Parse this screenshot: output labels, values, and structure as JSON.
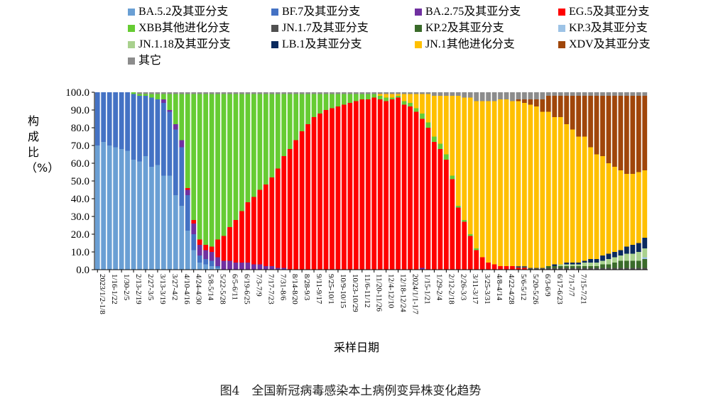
{
  "caption": "图4　全国新冠病毒感染本土病例变异株变化趋势",
  "chart_data": {
    "type": "bar",
    "stacked": true,
    "ylabel": "构成比（%）",
    "xlabel": "采样日期",
    "ylim": [
      0,
      100
    ],
    "yticks": [
      "0.0",
      "10.0",
      "20.0",
      "30.0",
      "40.0",
      "50.0",
      "60.0",
      "70.0",
      "80.0",
      "90.0",
      "100.0"
    ],
    "legend_position": "top",
    "legend": [
      {
        "name": "BA.5.2及其亚分支",
        "color": "#6a9fd4"
      },
      {
        "name": "BF.7及其亚分支",
        "color": "#4472c4"
      },
      {
        "name": "BA.2.75及其亚分支",
        "color": "#7030a0"
      },
      {
        "name": "EG.5及其亚分支",
        "color": "#ff0000"
      },
      {
        "name": "XBB其他进化分支",
        "color": "#66cc33"
      },
      {
        "name": "JN.1.7及其亚分支",
        "color": "#505050"
      },
      {
        "name": "KP.2及其亚分支",
        "color": "#3a6b2a"
      },
      {
        "name": "KP.3及其亚分支",
        "color": "#9dc3e6"
      },
      {
        "name": "JN.1.18及其亚分支",
        "color": "#a9d18e"
      },
      {
        "name": "LB.1及其亚分支",
        "color": "#0a2a5e"
      },
      {
        "name": "JN.1其他进化分支",
        "color": "#ffc000"
      },
      {
        "name": "XDV及其亚分支",
        "color": "#a0460a"
      },
      {
        "name": "其它",
        "color": "#8c8c8c"
      }
    ],
    "x_tick_labels": [
      "2023/1/2-1/8",
      "1/16-1/22",
      "1/30-2/5",
      "2/13-2/19",
      "2/27-3/5",
      "3/13-3/19",
      "3/27-4/2",
      "4/10-4/16",
      "4/24-4/30",
      "5/8-5/14",
      "5/22-5/28",
      "6/5-6/11",
      "6/19-6/25",
      "7/3-7/9",
      "7/17-7/23",
      "7/31-8/6",
      "8/14-8/20",
      "8/28-9/3",
      "9/11-9/17",
      "9/25-10/1",
      "10/9-10/15",
      "10/23-10/29",
      "11/6-11/12",
      "11/20-11/26",
      "12/4-12/10",
      "12/18-12/24",
      "2024/1/1-1/7",
      "1/15-1/21",
      "1/29-2/4",
      "2/12-2/18",
      "2/26-3/3",
      "3/11-3/17",
      "3/25-3/31",
      "4/8-4/14",
      "4/22-4/28",
      "5/6-5/12",
      "5/20-5/26",
      "6/3-6/9",
      "6/17-6/23",
      "7/1-7/7",
      "7/15-7/21"
    ],
    "series_order": [
      "BA.5.2及其亚分支",
      "BF.7及其亚分支",
      "BA.2.75及其亚分支",
      "EG.5及其亚分支",
      "XBB其他进化分支",
      "JN.1.7及其亚分支",
      "KP.2及其亚分支",
      "KP.3及其亚分支",
      "JN.1.18及其亚分支",
      "LB.1及其亚分支",
      "JN.1其他进化分支",
      "XDV及其亚分支",
      "其它"
    ],
    "weeks": [
      {
        "BA.5.2及其亚分支": 70,
        "BF.7及其亚分支": 30
      },
      {
        "BA.5.2及其亚分支": 72,
        "BF.7及其亚分支": 28
      },
      {
        "BA.5.2及其亚分支": 70,
        "BF.7及其亚分支": 30
      },
      {
        "BA.5.2及其亚分支": 69,
        "BF.7及其亚分支": 31
      },
      {
        "BA.5.2及其亚分支": 68,
        "BF.7及其亚分支": 32
      },
      {
        "BA.5.2及其亚分支": 67,
        "BF.7及其亚分支": 33
      },
      {
        "BA.5.2及其亚分支": 62,
        "BF.7及其亚分支": 37,
        "XBB其他进化分支": 1
      },
      {
        "BA.5.2及其亚分支": 61,
        "BF.7及其亚分支": 37,
        "XBB其他进化分支": 1,
        "其它": 1
      },
      {
        "BA.5.2及其亚分支": 64,
        "BF.7及其亚分支": 34,
        "XBB其他进化分支": 1,
        "其它": 1
      },
      {
        "BA.5.2及其亚分支": 58,
        "BF.7及其亚分支": 39,
        "XBB其他进化分支": 2,
        "其它": 1
      },
      {
        "BA.5.2及其亚分支": 59,
        "BF.7及其亚分支": 37,
        "XBB其他进化分支": 3,
        "其它": 1
      },
      {
        "BA.5.2及其亚分支": 53,
        "BF.7及其亚分支": 41,
        "BA.2.75及其亚分支": 2,
        "XBB其他进化分支": 3,
        "其它": 1
      },
      {
        "BA.5.2及其亚分支": 53,
        "BF.7及其亚分支": 36,
        "BA.2.75及其亚分支": 1,
        "XBB其他进化分支": 9,
        "其它": 1
      },
      {
        "BA.5.2及其亚分支": 42,
        "BF.7及其亚分支": 37,
        "BA.2.75及其亚分支": 3,
        "XBB其他进化分支": 17,
        "其它": 1
      },
      {
        "BA.5.2及其亚分支": 36,
        "BF.7及其亚分支": 33,
        "BA.2.75及其亚分支": 4,
        "XBB其他进化分支": 26,
        "其它": 1
      },
      {
        "BA.5.2及其亚分支": 22,
        "BF.7及其亚分支": 20,
        "BA.2.75及其亚分支": 3,
        "EG.5及其亚分支": 1,
        "XBB其他进化分支": 53,
        "其它": 1
      },
      {
        "BA.5.2及其亚分支": 11,
        "BF.7及其亚分支": 9,
        "BA.2.75及其亚分支": 6,
        "EG.5及其亚分支": 2,
        "XBB其他进化分支": 71,
        "其它": 1
      },
      {
        "BA.5.2及其亚分支": 4,
        "BF.7及其亚分支": 4,
        "BA.2.75及其亚分支": 6,
        "EG.5及其亚分支": 3,
        "XBB其他进化分支": 82,
        "其它": 1
      },
      {
        "BA.5.2及其亚分支": 3,
        "BF.7及其亚分支": 3,
        "BA.2.75及其亚分支": 5,
        "EG.5及其亚分支": 3,
        "XBB其他进化分支": 85,
        "其它": 1
      },
      {
        "BA.5.2及其亚分支": 2,
        "BF.7及其亚分支": 3,
        "BA.2.75及其亚分支": 5,
        "EG.5及其亚分支": 3,
        "XBB其他进化分支": 86,
        "其它": 1
      },
      {
        "BA.5.2及其亚分支": 1,
        "BF.7及其亚分支": 1,
        "BA.2.75及其亚分支": 5,
        "EG.5及其亚分支": 10,
        "XBB其他进化分支": 82,
        "其它": 1
      },
      {
        "BA.2.75及其亚分支": 5,
        "EG.5及其亚分支": 14,
        "XBB其他进化分支": 80,
        "其它": 1
      },
      {
        "BA.2.75及其亚分支": 5,
        "EG.5及其亚分支": 19,
        "XBB其他进化分支": 75,
        "其它": 1
      },
      {
        "BA.2.75及其亚分支": 4,
        "EG.5及其亚分支": 24,
        "XBB其他进化分支": 71,
        "其它": 1
      },
      {
        "BA.2.75及其亚分支": 4,
        "EG.5及其亚分支": 29,
        "XBB其他进化分支": 66,
        "其它": 1
      },
      {
        "BA.2.75及其亚分支": 4,
        "EG.5及其亚分支": 34,
        "XBB其他进化分支": 61,
        "其它": 1
      },
      {
        "BA.2.75及其亚分支": 3,
        "EG.5及其亚分支": 38,
        "XBB其他进化分支": 58,
        "其它": 1
      },
      {
        "BA.2.75及其亚分支": 3,
        "EG.5及其亚分支": 42,
        "XBB其他进化分支": 54,
        "其它": 1
      },
      {
        "BA.2.75及其亚分支": 2,
        "EG.5及其亚分支": 46,
        "XBB其他进化分支": 51,
        "其它": 1
      },
      {
        "BA.2.75及其亚分支": 2,
        "EG.5及其亚分支": 50,
        "XBB其他进化分支": 47,
        "其它": 1
      },
      {
        "BA.2.75及其亚分支": 1,
        "EG.5及其亚分支": 56,
        "XBB其他进化分支": 42,
        "其它": 1
      },
      {
        "BA.2.75及其亚分支": 1,
        "EG.5及其亚分支": 63,
        "XBB其他进化分支": 35,
        "其它": 1
      },
      {
        "EG.5及其亚分支": 68,
        "XBB其他进化分支": 31,
        "其它": 1
      },
      {
        "EG.5及其亚分支": 73,
        "XBB其他进化分支": 26,
        "其它": 1
      },
      {
        "EG.5及其亚分支": 78,
        "XBB其他进化分支": 21,
        "其它": 1
      },
      {
        "EG.5及其亚分支": 82,
        "XBB其他进化分支": 17,
        "其它": 1
      },
      {
        "EG.5及其亚分支": 86,
        "XBB其他进化分支": 13,
        "其它": 1
      },
      {
        "EG.5及其亚分支": 88,
        "XBB其他进化分支": 11,
        "其它": 1
      },
      {
        "EG.5及其亚分支": 90,
        "XBB其他进化分支": 9,
        "其它": 1
      },
      {
        "EG.5及其亚分支": 91,
        "XBB其他进化分支": 8,
        "其它": 1
      },
      {
        "EG.5及其亚分支": 92,
        "XBB其他进化分支": 7,
        "其它": 1
      },
      {
        "EG.5及其亚分支": 93,
        "XBB其他进化分支": 6,
        "其它": 1
      },
      {
        "EG.5及其亚分支": 94,
        "XBB其他进化分支": 5,
        "其它": 1
      },
      {
        "EG.5及其亚分支": 95,
        "XBB其他进化分支": 4,
        "其它": 1
      },
      {
        "EG.5及其亚分支": 96,
        "XBB其他进化分支": 3,
        "其它": 1
      },
      {
        "EG.5及其亚分支": 96,
        "XBB其他进化分支": 3,
        "其它": 1
      },
      {
        "EG.5及其亚分支": 97,
        "XBB其他进化分支": 2,
        "其它": 1
      },
      {
        "EG.5及其亚分支": 96,
        "XBB其他进化分支": 2,
        "JN.1其他进化分支": 1,
        "其它": 1
      },
      {
        "EG.5及其亚分支": 95,
        "XBB其他进化分支": 2,
        "JN.1其他进化分支": 2,
        "其它": 1
      },
      {
        "EG.5及其亚分支": 96,
        "XBB其他进化分支": 1,
        "JN.1其他进化分支": 2,
        "其它": 1
      },
      {
        "EG.5及其亚分支": 97,
        "XBB其他进化分支": 1,
        "JN.1其他进化分支": 1,
        "其它": 1
      },
      {
        "EG.5及其亚分支": 93,
        "XBB其他进化分支": 2,
        "JN.1其他进化分支": 4,
        "其它": 1
      },
      {
        "EG.5及其亚分支": 92,
        "XBB其他进化分支": 2,
        "JN.1其他进化分支": 5,
        "其它": 1
      },
      {
        "EG.5及其亚分支": 89,
        "XBB其他进化分支": 2,
        "JN.1其他进化分支": 8,
        "其它": 1
      },
      {
        "BA.2.75及其亚分支": 1,
        "EG.5及其亚分支": 84,
        "XBB其他进化分支": 3,
        "JN.1其他进化分支": 11,
        "其它": 1
      },
      {
        "EG.5及其亚分支": 80,
        "XBB其他进化分支": 3,
        "JN.1其他进化分支": 16,
        "其它": 1
      },
      {
        "EG.5及其亚分支": 72,
        "XBB其他进化分支": 3,
        "JN.1其他进化分支": 23,
        "其它": 2
      },
      {
        "EG.5及其亚分支": 68,
        "XBB其他进化分支": 3,
        "JN.1其他进化分支": 27,
        "其它": 2
      },
      {
        "EG.5及其亚分支": 62,
        "XBB其他进化分支": 3,
        "JN.1其他进化分支": 33,
        "其它": 2
      },
      {
        "EG.5及其亚分支": 51,
        "XBB其他进化分支": 2,
        "JN.1其他进化分支": 45,
        "其它": 2
      },
      {
        "EG.5及其亚分支": 35,
        "XBB其他进化分支": 1,
        "JN.1其他进化分支": 62,
        "其它": 2
      },
      {
        "EG.5及其亚分支": 27,
        "XBB其他进化分支": 1,
        "JN.1其他进化分支": 69,
        "其它": 3
      },
      {
        "EG.5及其亚分支": 19,
        "XBB其他进化分支": 1,
        "JN.1其他进化分支": 77,
        "其它": 3
      },
      {
        "EG.5及其亚分支": 11,
        "XBB其他进化分支": 1,
        "JN.1其他进化分支": 83,
        "其它": 5
      },
      {
        "EG.5及其亚分支": 7,
        "JN.1其他进化分支": 88,
        "其它": 5
      },
      {
        "EG.5及其亚分支": 4,
        "JN.1其他进化分支": 91,
        "其它": 5
      },
      {
        "EG.5及其亚分支": 3,
        "JN.1其他进化分支": 92,
        "其它": 5
      },
      {
        "EG.5及其亚分支": 2,
        "JN.1其他进化分支": 94,
        "其它": 4
      },
      {
        "EG.5及其亚分支": 2,
        "JN.1其他进化分支": 94,
        "其它": 4
      },
      {
        "EG.5及其亚分支": 2,
        "JN.1其他进化分支": 93,
        "其它": 5
      },
      {
        "EG.5及其亚分支": 1,
        "JN.1.7及其亚分支": 1,
        "JN.1其他进化分支": 93,
        "XDV及其亚分支": 1,
        "其它": 4
      },
      {
        "EG.5及其亚分支": 1,
        "JN.1.7及其亚分支": 1,
        "JN.1其他进化分支": 92,
        "XDV及其亚分支": 2,
        "其它": 4
      },
      {
        "JN.1.7及其亚分支": 1,
        "JN.1其他进化分支": 92,
        "XDV及其亚分支": 3,
        "其它": 4
      },
      {
        "JN.1.7及其亚分支": 1,
        "JN.1其他进化分支": 91,
        "XDV及其亚分支": 4,
        "其它": 4
      },
      {
        "JN.1.7及其亚分支": 1,
        "JN.1其他进化分支": 88,
        "XDV及其亚分支": 7,
        "其它": 4
      },
      {
        "JN.1.7及其亚分支": 1,
        "KP.2及其亚分支": 1,
        "JN.1其他进化分支": 87,
        "XDV及其亚分支": 9,
        "其它": 2
      },
      {
        "JN.1.7及其亚分支": 1,
        "KP.2及其亚分支": 1,
        "LB.1及其亚分支": 1,
        "JN.1其他进化分支": 83,
        "XDV及其亚分支": 12,
        "其它": 2
      },
      {
        "JN.1.7及其亚分支": 1,
        "KP.2及其亚分支": 1,
        "JN.1.18及其亚分支": 1,
        "JN.1其他进化分支": 83,
        "XDV及其亚分支": 12,
        "其它": 2
      },
      {
        "JN.1.7及其亚分支": 1,
        "KP.2及其亚分支": 1,
        "JN.1.18及其亚分支": 1,
        "LB.1及其亚分支": 1,
        "JN.1其他进化分支": 78,
        "XDV及其亚分支": 16,
        "其它": 2
      },
      {
        "JN.1.7及其亚分支": 1,
        "KP.2及其亚分支": 1,
        "JN.1.18及其亚分支": 1,
        "LB.1及其亚分支": 1,
        "JN.1其他进化分支": 75,
        "XDV及其亚分支": 19,
        "其它": 2
      },
      {
        "JN.1.7及其亚分支": 1,
        "KP.2及其亚分支": 1,
        "JN.1.18及其亚分支": 1,
        "LB.1及其亚分支": 1,
        "JN.1其他进化分支": 71,
        "XDV及其亚分支": 23,
        "其它": 2
      },
      {
        "JN.1.7及其亚分支": 1,
        "KP.2及其亚分支": 1,
        "JN.1.18及其亚分支": 2,
        "LB.1及其亚分支": 1,
        "JN.1其他进化分支": 70,
        "XDV及其亚分支": 23,
        "其它": 2
      },
      {
        "JN.1.7及其亚分支": 1,
        "KP.2及其亚分支": 1,
        "JN.1.18及其亚分支": 2,
        "LB.1及其亚分支": 2,
        "JN.1其他进化分支": 63,
        "XDV及其亚分支": 29,
        "其它": 2
      },
      {
        "JN.1.7及其亚分支": 1,
        "KP.2及其亚分支": 1,
        "JN.1.18及其亚分支": 2,
        "LB.1及其亚分支": 2,
        "JN.1其他进化分支": 59,
        "XDV及其亚分支": 33,
        "其它": 2
      },
      {
        "JN.1.7及其亚分支": 1,
        "KP.2及其亚分支": 2,
        "JN.1.18及其亚分支": 2,
        "LB.1及其亚分支": 3,
        "JN.1其他进化分支": 56,
        "XDV及其亚分支": 34,
        "其它": 2
      },
      {
        "JN.1.7及其亚分支": 1,
        "KP.2及其亚分支": 2,
        "JN.1.18及其亚分支": 3,
        "LB.1及其亚分支": 3,
        "JN.1其他进化分支": 51,
        "XDV及其亚分支": 38,
        "其它": 2
      },
      {
        "JN.1.7及其亚分支": 1,
        "KP.2及其亚分支": 3,
        "JN.1.18及其亚分支": 3,
        "LB.1及其亚分支": 3,
        "JN.1其他进化分支": 48,
        "XDV及其亚分支": 40,
        "其它": 2
      },
      {
        "JN.1.7及其亚分支": 1,
        "KP.2及其亚分支": 4,
        "JN.1.18及其亚分支": 3,
        "LB.1及其亚分支": 3,
        "JN.1其他进化分支": 45,
        "XDV及其亚分支": 42,
        "其它": 2
      },
      {
        "JN.1.7及其亚分支": 1,
        "KP.2及其亚分支": 4,
        "JN.1.18及其亚分支": 4,
        "LB.1及其亚分支": 4,
        "JN.1其他进化分支": 41,
        "XDV及其亚分支": 44,
        "其它": 2
      },
      {
        "JN.1.7及其亚分支": 1,
        "KP.2及其亚分支": 4,
        "JN.1.18及其亚分支": 4,
        "LB.1及其亚分支": 5,
        "JN.1其他进化分支": 40,
        "XDV及其亚分支": 44,
        "其它": 2
      },
      {
        "JN.1.7及其亚分支": 1,
        "KP.2及其亚分支": 4,
        "JN.1.18及其亚分支": 5,
        "LB.1及其亚分支": 5,
        "JN.1其他进化分支": 40,
        "XDV及其亚分支": 43,
        "其它": 2
      },
      {
        "JN.1.7及其亚分支": 1,
        "KP.2及其亚分支": 5,
        "KP.3及其亚分支": 1,
        "JN.1.18及其亚分支": 5,
        "LB.1及其亚分支": 6,
        "JN.1其他进化分支": 38,
        "XDV及其亚分支": 42,
        "其它": 2
      }
    ]
  }
}
